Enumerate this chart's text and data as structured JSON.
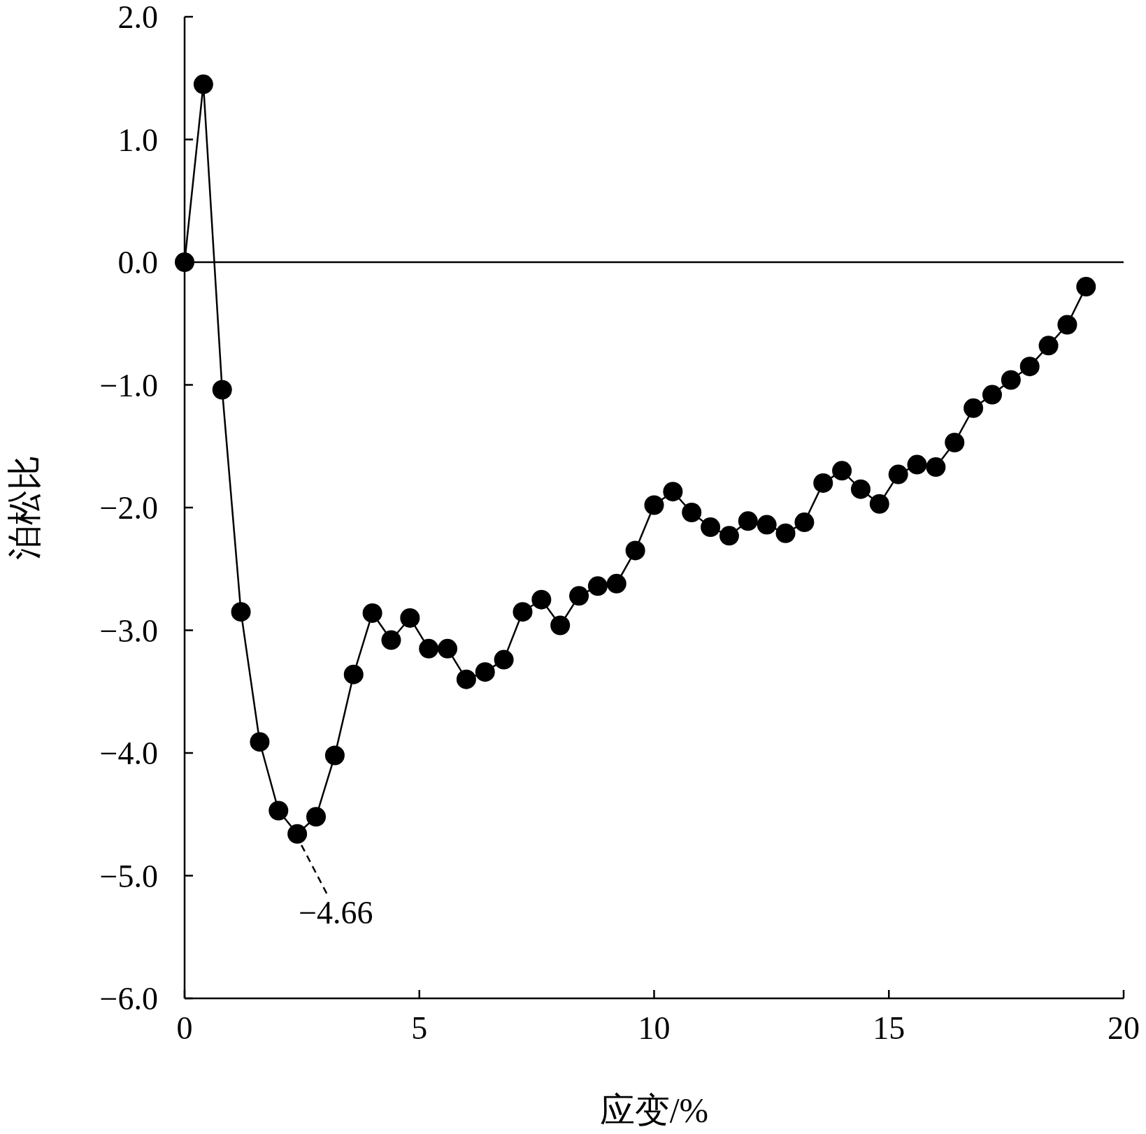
{
  "chart_data": {
    "type": "line",
    "xlabel": "应变/%",
    "ylabel": "泊松比",
    "x": [
      0,
      0.4,
      0.8,
      1.2,
      1.6,
      2.0,
      2.4,
      2.8,
      3.2,
      3.6,
      4.0,
      4.4,
      4.8,
      5.2,
      5.6,
      6.0,
      6.4,
      6.8,
      7.2,
      7.6,
      8.0,
      8.4,
      8.8,
      9.2,
      9.6,
      10.0,
      10.4,
      10.8,
      11.2,
      11.6,
      12.0,
      12.4,
      12.8,
      13.2,
      13.6,
      14.0,
      14.4,
      14.8,
      15.2,
      15.6,
      16.0,
      16.4,
      16.8,
      17.2,
      17.6,
      18.0,
      18.4,
      18.8,
      19.2
    ],
    "series": [
      {
        "color": "#000000",
        "values": [
          0,
          1.45,
          -1.04,
          -2.85,
          -3.91,
          -4.47,
          -4.66,
          -4.52,
          -4.02,
          -3.36,
          -2.86,
          -3.08,
          -2.9,
          -3.15,
          -3.15,
          -3.4,
          -3.34,
          -3.24,
          -2.85,
          -2.75,
          -2.96,
          -2.72,
          -2.64,
          -2.62,
          -2.35,
          -1.98,
          -1.87,
          -2.04,
          -2.16,
          -2.23,
          -2.11,
          -2.14,
          -2.21,
          -2.12,
          -1.8,
          -1.7,
          -1.85,
          -1.97,
          -1.73,
          -1.65,
          -1.67,
          -1.47,
          -1.19,
          -1.08,
          -0.96,
          -0.85,
          -0.68,
          -0.51,
          -0.2
        ]
      }
    ],
    "marker": "circle",
    "line_style": "solid",
    "xlim": [
      0,
      20
    ],
    "xticks": [
      0,
      5,
      10,
      15,
      20
    ],
    "ylim": [
      -6,
      2
    ],
    "yticks": [
      {
        "value": 2,
        "label": "2.0"
      },
      {
        "value": 1,
        "label": "1.0"
      },
      {
        "value": 0,
        "label": "0.0"
      },
      {
        "value": -1,
        "label": "−1.0"
      },
      {
        "value": -2,
        "label": "−2.0"
      },
      {
        "value": -3,
        "label": "−3.0"
      },
      {
        "value": -4,
        "label": "−4.0"
      },
      {
        "value": -5,
        "label": "−5.0"
      },
      {
        "value": -6,
        "label": "−6.0"
      }
    ],
    "ref_lines": [
      {
        "axis": "y",
        "value": 0,
        "color": "#000000",
        "line_style": "solid"
      }
    ],
    "annotations": [
      {
        "text": "−4.66",
        "x": 2.4,
        "y": -4.66
      }
    ],
    "grid": false
  }
}
